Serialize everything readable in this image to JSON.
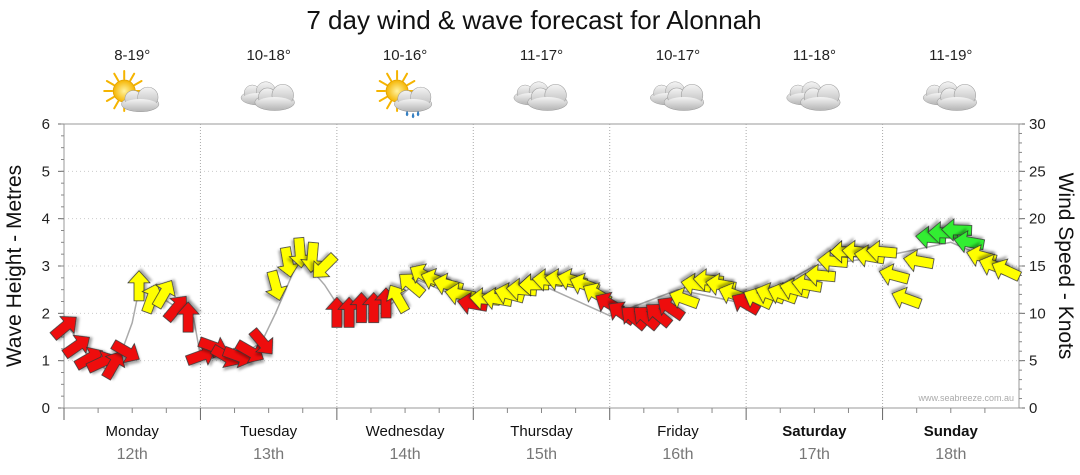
{
  "chart_data": {
    "type": "line",
    "title": "7 day wind & wave forecast for Alonnah",
    "ylabel": "Wave Height - Metres",
    "y2label": "Wind Speed - Knots",
    "ylim": [
      0,
      6
    ],
    "y2lim": [
      0,
      30
    ],
    "yticks": [
      "0",
      "1",
      "2",
      "3",
      "4",
      "5",
      "6"
    ],
    "y2ticks": [
      "0",
      "5",
      "10",
      "15",
      "20",
      "25",
      "30"
    ],
    "grid": true,
    "credit": "www.seabreeze.com.au",
    "days": [
      {
        "name": "Monday",
        "date": "12th",
        "bold": false,
        "temp": "8-19°",
        "icon": "sun-cloud-icon"
      },
      {
        "name": "Tuesday",
        "date": "13th",
        "bold": false,
        "temp": "10-18°",
        "icon": "cloud-icon"
      },
      {
        "name": "Wednesday",
        "date": "14th",
        "bold": false,
        "temp": "10-16°",
        "icon": "sun-cloud-rain-icon"
      },
      {
        "name": "Thursday",
        "date": "15th",
        "bold": false,
        "temp": "11-17°",
        "icon": "cloud-icon"
      },
      {
        "name": "Friday",
        "date": "16th",
        "bold": false,
        "temp": "10-17°",
        "icon": "cloud-icon"
      },
      {
        "name": "Saturday",
        "date": "17th",
        "bold": true,
        "temp": "11-18°",
        "icon": "cloud-icon"
      },
      {
        "name": "Sunday",
        "date": "18th",
        "bold": true,
        "temp": "11-19°",
        "icon": "cloud-icon"
      }
    ],
    "wind_colors": {
      "strong": "#ee1111",
      "moderate": "#ffff00",
      "light": "#33ee33"
    },
    "series": [
      {
        "name": "Wind Speed",
        "unit": "knots",
        "points": [
          {
            "t": 0.0,
            "v": 8.5,
            "dir": -40
          },
          {
            "t": 0.09,
            "v": 6.5,
            "dir": -35
          },
          {
            "t": 0.18,
            "v": 5.2,
            "dir": -30
          },
          {
            "t": 0.27,
            "v": 4.8,
            "dir": -25
          },
          {
            "t": 0.36,
            "v": 4.5,
            "dir": -60
          },
          {
            "t": 0.45,
            "v": 6.0,
            "dir": 30
          },
          {
            "t": 0.55,
            "v": 12.8,
            "dir": -90
          },
          {
            "t": 0.64,
            "v": 11.5,
            "dir": -70
          },
          {
            "t": 0.73,
            "v": 12.0,
            "dir": -60
          },
          {
            "t": 0.82,
            "v": 10.5,
            "dir": -50
          },
          {
            "t": 0.91,
            "v": 9.5,
            "dir": -90
          },
          {
            "t": 1.0,
            "v": 5.5,
            "dir": -20
          },
          {
            "t": 1.09,
            "v": 6.5,
            "dir": 20
          },
          {
            "t": 1.18,
            "v": 5.5,
            "dir": 30
          },
          {
            "t": 1.27,
            "v": 5.5,
            "dir": 20
          },
          {
            "t": 1.36,
            "v": 6.0,
            "dir": 30
          },
          {
            "t": 1.45,
            "v": 7.0,
            "dir": 50
          },
          {
            "t": 1.55,
            "v": 13.0,
            "dir": 75
          },
          {
            "t": 1.64,
            "v": 15.5,
            "dir": 80
          },
          {
            "t": 1.73,
            "v": 16.5,
            "dir": 85
          },
          {
            "t": 1.82,
            "v": 16.0,
            "dir": 95
          },
          {
            "t": 1.91,
            "v": 15.0,
            "dir": 135
          },
          {
            "t": 2.0,
            "v": 10.0,
            "dir": -90
          },
          {
            "t": 2.09,
            "v": 10.0,
            "dir": -90
          },
          {
            "t": 2.18,
            "v": 10.5,
            "dir": -90
          },
          {
            "t": 2.27,
            "v": 10.5,
            "dir": -90
          },
          {
            "t": 2.36,
            "v": 11.0,
            "dir": -90
          },
          {
            "t": 2.45,
            "v": 11.5,
            "dir": -120
          },
          {
            "t": 2.55,
            "v": 13.0,
            "dir": -140
          },
          {
            "t": 2.64,
            "v": 14.0,
            "dir": -150
          },
          {
            "t": 2.73,
            "v": 13.5,
            "dir": -160
          },
          {
            "t": 2.82,
            "v": 13.0,
            "dir": -165
          },
          {
            "t": 2.91,
            "v": 12.0,
            "dir": -170
          },
          {
            "t": 3.0,
            "v": 11.0,
            "dir": -170
          },
          {
            "t": 3.09,
            "v": 11.5,
            "dir": -175
          },
          {
            "t": 3.18,
            "v": 11.5,
            "dir": -170
          },
          {
            "t": 3.27,
            "v": 12.0,
            "dir": -165
          },
          {
            "t": 3.36,
            "v": 12.5,
            "dir": -175
          },
          {
            "t": 3.45,
            "v": 13.0,
            "dir": -180
          },
          {
            "t": 3.55,
            "v": 13.5,
            "dir": -175
          },
          {
            "t": 3.64,
            "v": 13.5,
            "dir": -170
          },
          {
            "t": 3.73,
            "v": 13.5,
            "dir": -165
          },
          {
            "t": 3.82,
            "v": 13.0,
            "dir": -160
          },
          {
            "t": 3.91,
            "v": 12.0,
            "dir": -150
          },
          {
            "t": 4.0,
            "v": 11.0,
            "dir": -150
          },
          {
            "t": 4.09,
            "v": 10.0,
            "dir": -145
          },
          {
            "t": 4.18,
            "v": 9.5,
            "dir": -140
          },
          {
            "t": 4.27,
            "v": 9.5,
            "dir": -140
          },
          {
            "t": 4.36,
            "v": 9.8,
            "dir": -140
          },
          {
            "t": 4.45,
            "v": 10.5,
            "dir": -145
          },
          {
            "t": 4.55,
            "v": 11.5,
            "dir": -160
          },
          {
            "t": 4.64,
            "v": 13.0,
            "dir": -170
          },
          {
            "t": 4.73,
            "v": 13.5,
            "dir": -175
          },
          {
            "t": 4.82,
            "v": 13.0,
            "dir": -170
          },
          {
            "t": 4.91,
            "v": 12.0,
            "dir": -160
          },
          {
            "t": 5.0,
            "v": 11.0,
            "dir": -150
          },
          {
            "t": 5.09,
            "v": 11.5,
            "dir": -155
          },
          {
            "t": 5.18,
            "v": 12.0,
            "dir": -160
          },
          {
            "t": 5.27,
            "v": 12.0,
            "dir": -160
          },
          {
            "t": 5.36,
            "v": 12.5,
            "dir": -165
          },
          {
            "t": 5.45,
            "v": 13.0,
            "dir": -170
          },
          {
            "t": 5.55,
            "v": 14.0,
            "dir": -175
          },
          {
            "t": 5.64,
            "v": 15.5,
            "dir": -175
          },
          {
            "t": 5.73,
            "v": 16.5,
            "dir": -180
          },
          {
            "t": 5.82,
            "v": 16.5,
            "dir": -175
          },
          {
            "t": 5.91,
            "v": 16.0,
            "dir": -170
          },
          {
            "t": 6.0,
            "v": 16.5,
            "dir": -175
          },
          {
            "t": 6.09,
            "v": 14.0,
            "dir": -165
          },
          {
            "t": 6.18,
            "v": 11.5,
            "dir": -160
          },
          {
            "t": 6.27,
            "v": 15.5,
            "dir": -170
          },
          {
            "t": 6.36,
            "v": 18.0,
            "dir": -175
          },
          {
            "t": 6.45,
            "v": 18.5,
            "dir": -178
          },
          {
            "t": 6.55,
            "v": 18.8,
            "dir": -178
          },
          {
            "t": 6.64,
            "v": 17.5,
            "dir": -170
          },
          {
            "t": 6.73,
            "v": 16.0,
            "dir": -165
          },
          {
            "t": 6.82,
            "v": 15.0,
            "dir": -160
          },
          {
            "t": 6.91,
            "v": 14.5,
            "dir": -155
          }
        ]
      },
      {
        "name": "Wave Height",
        "unit": "metres",
        "points": [
          {
            "t": 0.0,
            "v": 1.85
          },
          {
            "t": 0.18,
            "v": 1.1
          },
          {
            "t": 0.36,
            "v": 0.7
          },
          {
            "t": 0.5,
            "v": 1.8
          },
          {
            "t": 0.55,
            "v": 2.5
          },
          {
            "t": 0.73,
            "v": 2.3
          },
          {
            "t": 0.95,
            "v": 1.9
          },
          {
            "t": 1.0,
            "v": 1.1
          },
          {
            "t": 1.3,
            "v": 1.1
          },
          {
            "t": 1.45,
            "v": 1.4
          },
          {
            "t": 1.55,
            "v": 2.0
          },
          {
            "t": 1.73,
            "v": 3.2
          },
          {
            "t": 1.91,
            "v": 2.6
          },
          {
            "t": 2.0,
            "v": 2.2
          },
          {
            "t": 2.4,
            "v": 2.2
          },
          {
            "t": 2.6,
            "v": 2.7
          },
          {
            "t": 3.0,
            "v": 2.2
          },
          {
            "t": 3.5,
            "v": 2.6
          },
          {
            "t": 4.0,
            "v": 1.95
          },
          {
            "t": 4.5,
            "v": 2.5
          },
          {
            "t": 5.0,
            "v": 2.2
          },
          {
            "t": 5.5,
            "v": 3.0
          },
          {
            "t": 6.0,
            "v": 3.2
          },
          {
            "t": 6.5,
            "v": 3.5
          },
          {
            "t": 6.91,
            "v": 3.0
          }
        ]
      }
    ]
  }
}
